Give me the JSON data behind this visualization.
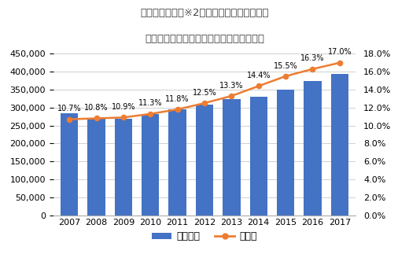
{
  "title_line1": "タイヤのパンク※2に関する出動件数および",
  "title_line2": "全体の出動件数における構成比（四輪車）",
  "years": [
    2007,
    2008,
    2009,
    2010,
    2011,
    2012,
    2013,
    2014,
    2015,
    2016,
    2017
  ],
  "bar_values": [
    285000,
    272000,
    268000,
    281000,
    295000,
    308000,
    323000,
    330000,
    350000,
    375000,
    393000
  ],
  "line_values": [
    10.7,
    10.8,
    10.9,
    11.3,
    11.8,
    12.5,
    13.3,
    14.4,
    15.5,
    16.3,
    17.0
  ],
  "bar_color": "#4472c4",
  "line_color": "#ed7d31",
  "bar_label": "出動件数",
  "line_label": "構成比",
  "ylim_left": [
    0,
    450000
  ],
  "ylim_right": [
    0.0,
    18.0
  ],
  "yticks_left": [
    0,
    50000,
    100000,
    150000,
    200000,
    250000,
    300000,
    350000,
    400000,
    450000
  ],
  "yticks_right": [
    0.0,
    2.0,
    4.0,
    6.0,
    8.0,
    10.0,
    12.0,
    14.0,
    16.0,
    18.0
  ],
  "bg_color": "#ffffff",
  "grid_color": "#d0d0d0",
  "title_color": "#595959"
}
